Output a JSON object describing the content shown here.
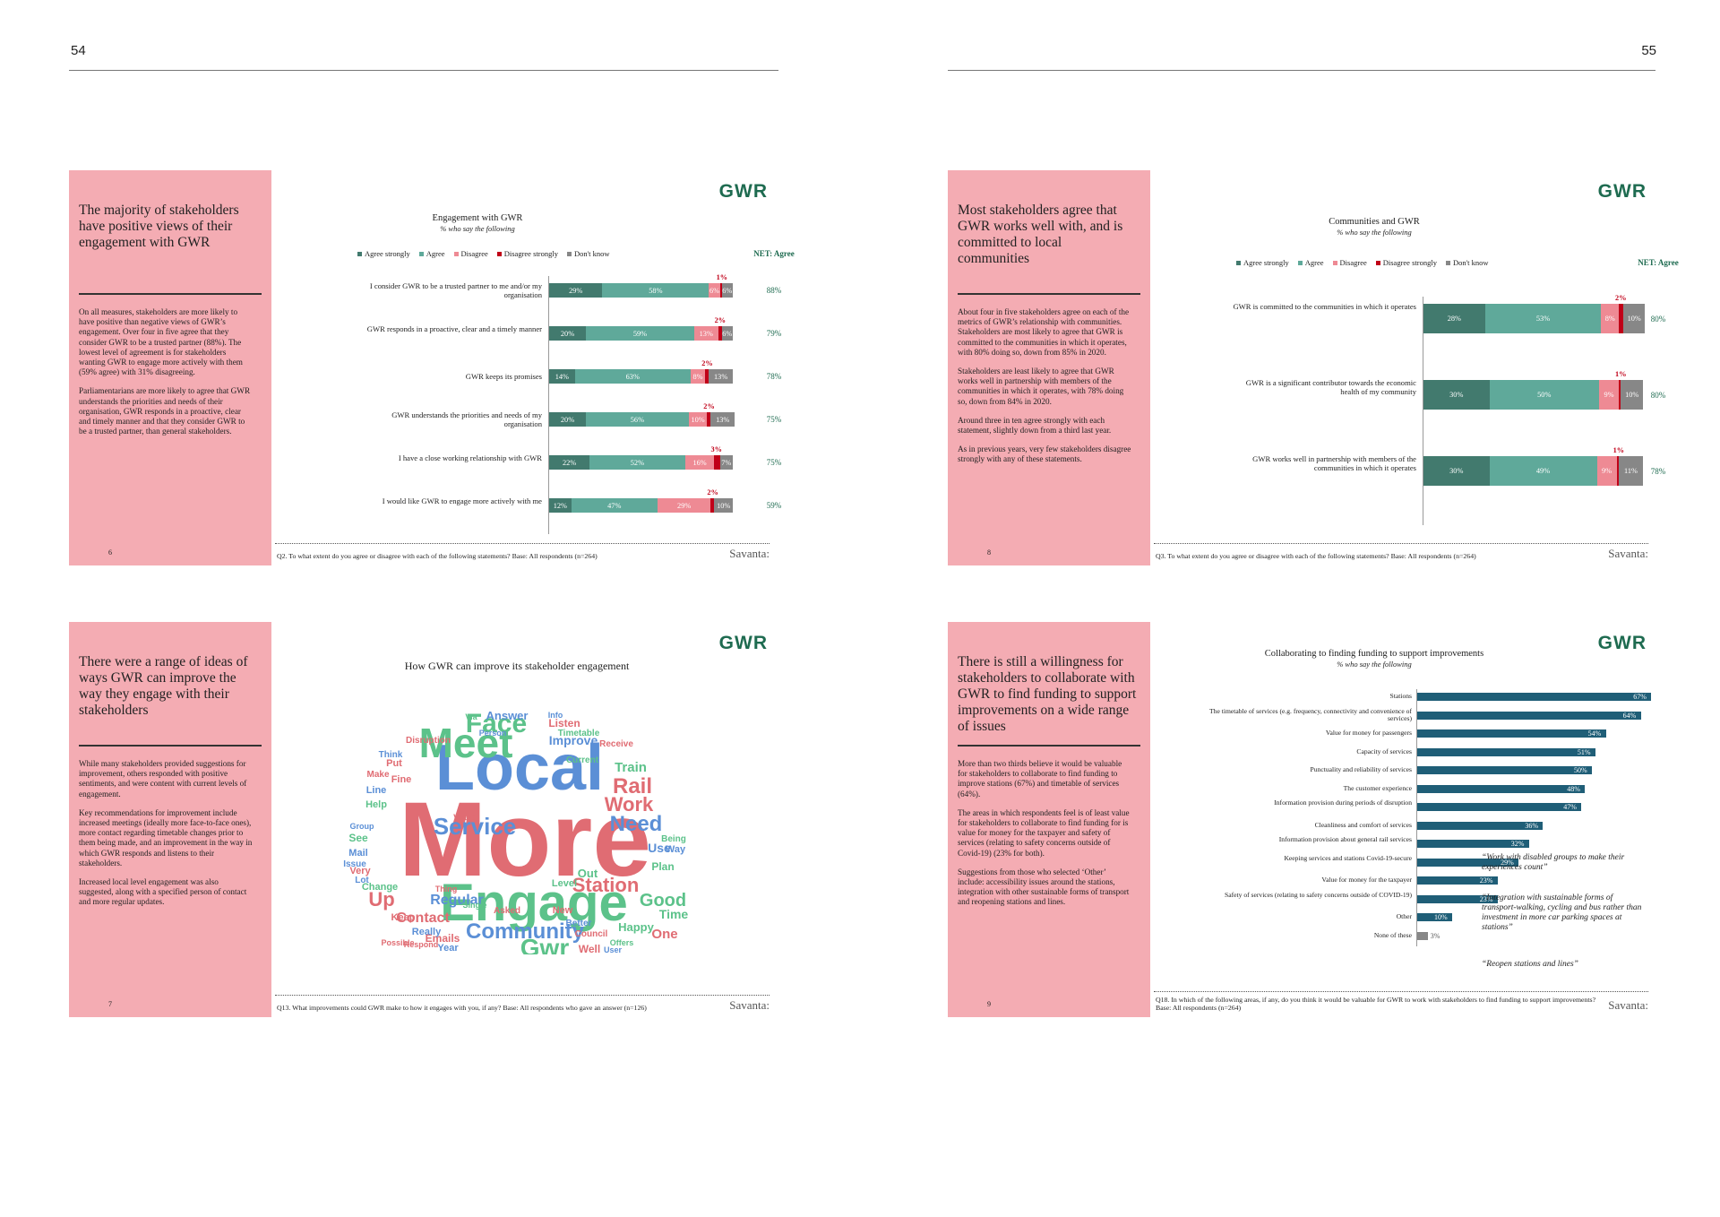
{
  "pages": {
    "left": "54",
    "right": "55"
  },
  "colors": {
    "panel": "#f4acb3",
    "dark_green": "#427a6e",
    "green": "#5fa99a",
    "pink": "#ee8a94",
    "red": "#c00018",
    "grey": "#878787",
    "navy": "#1f5e77"
  },
  "logo": "GWR",
  "brand": "Savanta:",
  "slide6": {
    "heading": "The majority of stakeholders have positive views of their engagement with GWR",
    "body": [
      "On all measures, stakeholders are more likely to have positive than negative views of GWR’s engagement. Over four in five agree that they consider GWR to be a trusted partner (88%). The lowest level of agreement is for stakeholders wanting GWR to engage more actively with them (59% agree) with 31% disagreeing.",
      "Parliamentarians are more likely to agree that GWR understands the priorities and needs of their organisation, GWR responds in a proactive, clear and timely manner and that they consider GWR to be a trusted partner, than general stakeholders."
    ],
    "slide_number": "6",
    "footnote": "Q2. To what extent do you agree or disagree with each of the following statements? Base: All respondents (n=264)"
  },
  "slide8": {
    "heading": "Most stakeholders agree that GWR works well with, and is committed to local communities",
    "body": [
      "About four in five stakeholders agree on each of the metrics of GWR’s relationship with communities. Stakeholders are most likely to agree that GWR is committed to the communities in which it operates, with 80% doing so, down from 85% in 2020.",
      "Stakeholders are least likely to agree that GWR works well in partnership with members of the communities in which it operates, with 78% doing so, down from 84% in 2020.",
      "Around three in ten agree strongly with each statement, slightly down from a third last year.",
      "As in previous years, very few stakeholders disagree strongly with any of these statements."
    ],
    "slide_number": "8",
    "footnote": "Q3. To what extent do you agree or disagree with each of the following statements? Base: All respondents (n=264)"
  },
  "slide7": {
    "heading": "There were a range of ideas of ways GWR can improve the way they engage with their stakeholders",
    "body": [
      "While many stakeholders provided suggestions for improvement, others responded with positive sentiments, and were content with current levels of engagement.",
      "Key recommendations for improvement include increased meetings (ideally more face-to-face ones), more contact regarding timetable changes prior to them being made, and an improvement in the way in which GWR responds and listens to their stakeholders.",
      "Increased local level engagement was also suggested, along with a specified person of contact and more regular updates."
    ],
    "slide_number": "7",
    "chart_title": "How GWR can improve its stakeholder engagement",
    "footnote": "Q13. What improvements could GWR make to how it engages with you, if any? Base: All respondents who gave an answer (n=126)"
  },
  "slide9": {
    "heading": "There is still a willingness for stakeholders to collaborate with GWR to find funding to support improvements on a wide range of issues",
    "body": [
      "More than two thirds believe it would be valuable for stakeholders to collaborate to find funding to improve stations (67%) and timetable of services (64%).",
      "The areas in which respondents feel is of least value for stakeholders to collaborate to find funding for is value for money for the taxpayer and safety of services (relating to safety concerns outside of Covid-19) (23% for both).",
      "Suggestions from those who selected ‘Other’ include: accessibility issues around the stations, integration with other sustainable forms of transport and reopening stations and lines."
    ],
    "slide_number": "9",
    "quotes": [
      "“Work with disabled groups to make their experiences count”",
      "“Integration with sustainable forms of transport-walking, cycling and bus rather than investment in more car parking spaces at stations”",
      "“Reopen stations and lines”"
    ],
    "footnote": "Q18. In which of the following areas, if any, do you think it would be valuable for GWR to work with stakeholders to find funding to support improvements? Base: All respondents (n=264)"
  },
  "wordcloud": [
    {
      "t": "More",
      "s": 118,
      "c": "#e06c73"
    },
    {
      "t": "Local",
      "s": 72,
      "c": "#5b8fd6"
    },
    {
      "t": "Engage",
      "s": 58,
      "c": "#5cc28a"
    },
    {
      "t": "Meet",
      "s": 46,
      "c": "#5cc28a"
    },
    {
      "t": "Face",
      "s": 30,
      "c": "#5cc28a"
    },
    {
      "t": "Service",
      "s": 26,
      "c": "#5b8fd6"
    },
    {
      "t": "Need",
      "s": 24,
      "c": "#5b8fd6"
    },
    {
      "t": "Rail",
      "s": 24,
      "c": "#e06c73"
    },
    {
      "t": "Work",
      "s": 22,
      "c": "#e06c73"
    },
    {
      "t": "Community",
      "s": 24,
      "c": "#5b8fd6"
    },
    {
      "t": "Gwr",
      "s": 28,
      "c": "#5cc28a"
    },
    {
      "t": "Station",
      "s": 22,
      "c": "#e06c73"
    },
    {
      "t": "Good",
      "s": 20,
      "c": "#5cc28a"
    },
    {
      "t": "Up",
      "s": 22,
      "c": "#e06c73"
    },
    {
      "t": "Contact",
      "s": 16,
      "c": "#e06c73"
    },
    {
      "t": "Regular",
      "s": 16,
      "c": "#5b8fd6"
    },
    {
      "t": "Train",
      "s": 15,
      "c": "#5cc28a"
    },
    {
      "t": "Improve",
      "s": 14,
      "c": "#5b8fd6"
    },
    {
      "t": "Answer",
      "s": 13,
      "c": "#5b8fd6"
    },
    {
      "t": "Listen",
      "s": 12,
      "c": "#e06c73"
    },
    {
      "t": "Time",
      "s": 14,
      "c": "#5cc28a"
    },
    {
      "t": "One",
      "s": 15,
      "c": "#e06c73"
    },
    {
      "t": "Use",
      "s": 14,
      "c": "#5b8fd6"
    },
    {
      "t": "Plan",
      "s": 12,
      "c": "#5cc28a"
    },
    {
      "t": "Out",
      "s": 13,
      "c": "#5cc28a"
    },
    {
      "t": "Happy",
      "s": 13,
      "c": "#5cc28a"
    },
    {
      "t": "Well",
      "s": 12,
      "c": "#e06c73"
    },
    {
      "t": "Year",
      "s": 11,
      "c": "#5b8fd6"
    },
    {
      "t": "Emails",
      "s": 12,
      "c": "#e06c73"
    },
    {
      "t": "Really",
      "s": 11,
      "c": "#5b8fd6"
    },
    {
      "t": "Keep",
      "s": 11,
      "c": "#e06c73"
    },
    {
      "t": "Change",
      "s": 11,
      "c": "#5cc28a"
    },
    {
      "t": "Mail",
      "s": 11,
      "c": "#5b8fd6"
    },
    {
      "t": "See",
      "s": 12,
      "c": "#5cc28a"
    },
    {
      "t": "Put",
      "s": 11,
      "c": "#e06c73"
    },
    {
      "t": "Fine",
      "s": 11,
      "c": "#e06c73"
    },
    {
      "t": "Line",
      "s": 11,
      "c": "#5b8fd6"
    },
    {
      "t": "Help",
      "s": 11,
      "c": "#5cc28a"
    },
    {
      "t": "Very",
      "s": 11,
      "c": "#e06c73"
    },
    {
      "t": "Issue",
      "s": 10,
      "c": "#5b8fd6"
    },
    {
      "t": "Level",
      "s": 11,
      "c": "#5cc28a"
    },
    {
      "t": "Better",
      "s": 10,
      "c": "#5b8fd6"
    },
    {
      "t": "Council",
      "s": 10,
      "c": "#e06c73"
    },
    {
      "t": "Timetable",
      "s": 10,
      "c": "#5cc28a"
    },
    {
      "t": "Disruption",
      "s": 10,
      "c": "#e06c73"
    },
    {
      "t": "Receive",
      "s": 10,
      "c": "#e06c73"
    },
    {
      "t": "Being",
      "s": 10,
      "c": "#5cc28a"
    },
    {
      "t": "Way",
      "s": 11,
      "c": "#5b8fd6"
    },
    {
      "t": "New",
      "s": 11,
      "c": "#e06c73"
    },
    {
      "t": "Respond",
      "s": 9,
      "c": "#e06c73"
    },
    {
      "t": "Offers",
      "s": 9,
      "c": "#5cc28a"
    },
    {
      "t": "Lot",
      "s": 10,
      "c": "#5b8fd6"
    },
    {
      "t": "Think",
      "s": 10,
      "c": "#5b8fd6"
    },
    {
      "t": "Make",
      "s": 10,
      "c": "#e06c73"
    },
    {
      "t": "Asked",
      "s": 10,
      "c": "#e06c73"
    },
    {
      "t": "Info",
      "s": 9,
      "c": "#5b8fd6"
    },
    {
      "t": "Virtual",
      "s": 9,
      "c": "#e06c73"
    },
    {
      "t": "Current",
      "s": 10,
      "c": "#5cc28a"
    },
    {
      "t": "User",
      "s": 9,
      "c": "#5b8fd6"
    },
    {
      "t": "Person",
      "s": 9,
      "c": "#5b8fd6"
    },
    {
      "t": "Possible",
      "s": 9,
      "c": "#e06c73"
    },
    {
      "t": "Single",
      "s": 9,
      "c": "#5cc28a"
    },
    {
      "t": "Group",
      "s": 9,
      "c": "#5b8fd6"
    },
    {
      "t": "Thing",
      "s": 9,
      "c": "#e06c73"
    },
    {
      "t": "Via",
      "s": 9,
      "c": "#5cc28a"
    }
  ]
}
